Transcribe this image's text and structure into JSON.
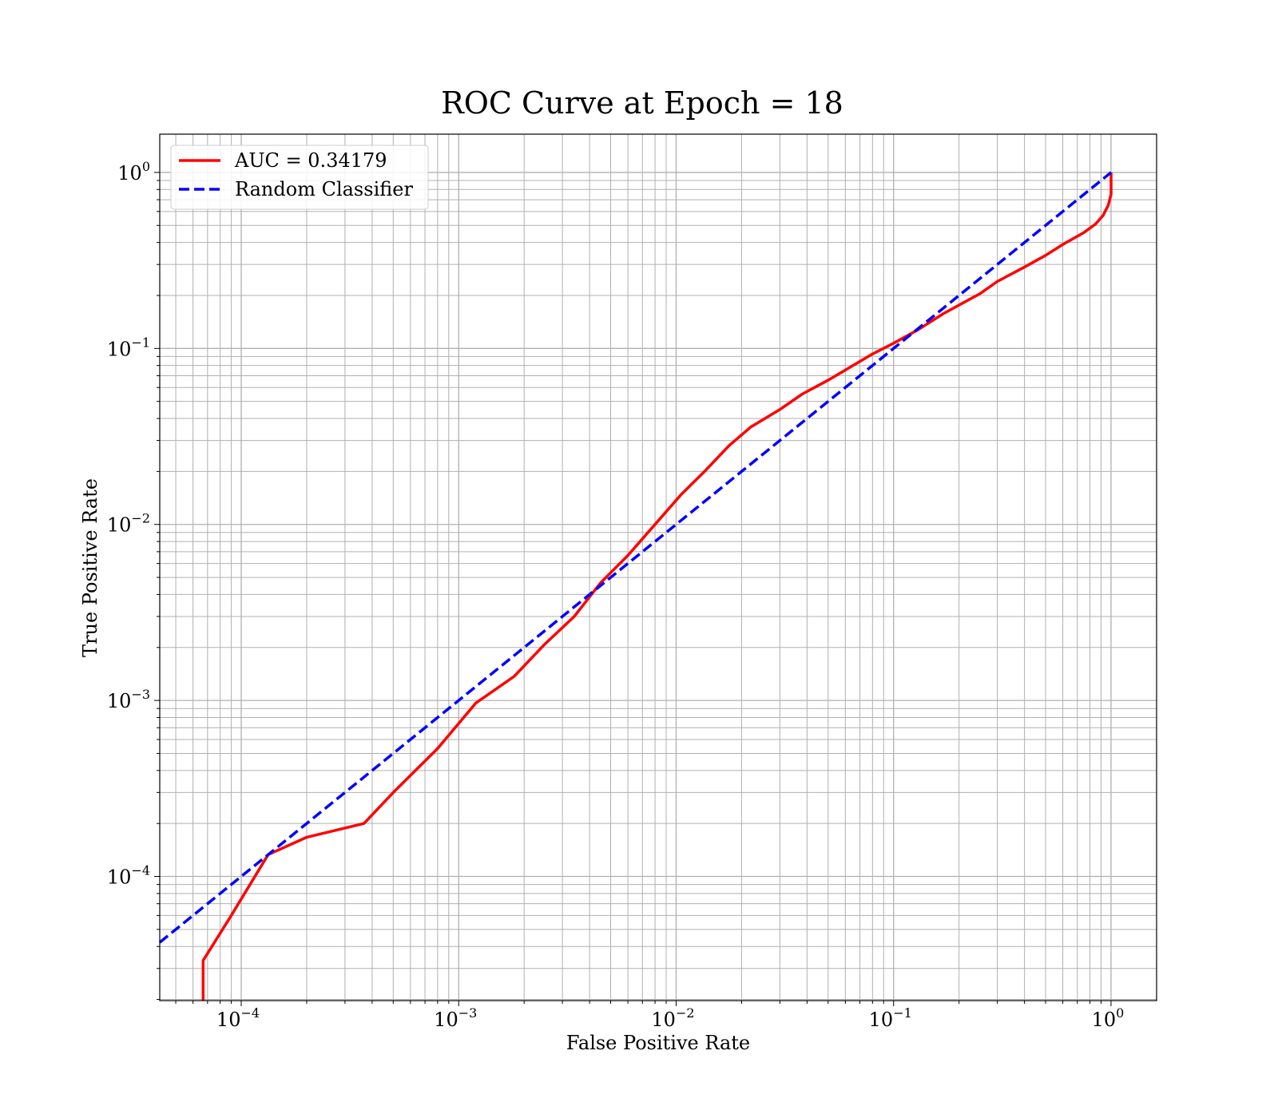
{
  "chart_data": {
    "type": "line",
    "title": "ROC Curve at Epoch = 18",
    "xlabel": "False Positive Rate",
    "ylabel": "True Positive Rate",
    "xscale": "log",
    "yscale": "log",
    "xlim": [
      4.22e-05,
      1.62
    ],
    "ylim": [
      1.97e-05,
      1.65
    ],
    "grid": "major and minor",
    "legend_position": "top-left",
    "x_ticks": [
      {
        "base": "10",
        "exp": "−4"
      },
      {
        "base": "10",
        "exp": "−3"
      },
      {
        "base": "10",
        "exp": "−2"
      },
      {
        "base": "10",
        "exp": "−1"
      },
      {
        "base": "10",
        "exp": "0"
      }
    ],
    "y_ticks": [
      {
        "base": "10",
        "exp": "−4"
      },
      {
        "base": "10",
        "exp": "−3"
      },
      {
        "base": "10",
        "exp": "−2"
      },
      {
        "base": "10",
        "exp": "−1"
      },
      {
        "base": "10",
        "exp": "0"
      }
    ],
    "series": [
      {
        "name": "AUC = 0.34179",
        "color": "#ff0000",
        "style": "solid",
        "points": [
          [
            6.68e-05,
            1.97e-05
          ],
          [
            6.68e-05,
            3.33e-05
          ],
          [
            9e-05,
            6e-05
          ],
          [
            0.000133,
            0.000133
          ],
          [
            0.0002,
            0.000167
          ],
          [
            0.000367,
            0.0002
          ],
          [
            0.0005,
            0.0003
          ],
          [
            0.0008,
            0.000533
          ],
          [
            0.0012,
            0.000967
          ],
          [
            0.0018,
            0.00137
          ],
          [
            0.0025,
            0.0021
          ],
          [
            0.0034,
            0.003
          ],
          [
            0.0045,
            0.00467
          ],
          [
            0.006,
            0.00667
          ],
          [
            0.008,
            0.01
          ],
          [
            0.0105,
            0.0147
          ],
          [
            0.0135,
            0.02
          ],
          [
            0.0175,
            0.028
          ],
          [
            0.022,
            0.0357
          ],
          [
            0.03,
            0.045
          ],
          [
            0.038,
            0.055
          ],
          [
            0.05,
            0.066
          ],
          [
            0.08,
            0.093
          ],
          [
            0.1,
            0.107
          ],
          [
            0.13,
            0.128
          ],
          [
            0.17,
            0.158
          ],
          [
            0.25,
            0.205
          ],
          [
            0.3,
            0.24
          ],
          [
            0.4,
            0.29
          ],
          [
            0.5,
            0.338
          ],
          [
            0.6,
            0.39
          ],
          [
            0.75,
            0.455
          ],
          [
            0.85,
            0.51
          ],
          [
            0.92,
            0.57
          ],
          [
            0.97,
            0.65
          ],
          [
            1.0,
            0.75
          ],
          [
            1.0,
            1.0
          ]
        ]
      },
      {
        "name": "Random Classifier",
        "color": "#0000ff",
        "style": "dashed",
        "points": [
          [
            4.22e-05,
            4.22e-05
          ],
          [
            1.0,
            1.0
          ]
        ]
      }
    ]
  }
}
